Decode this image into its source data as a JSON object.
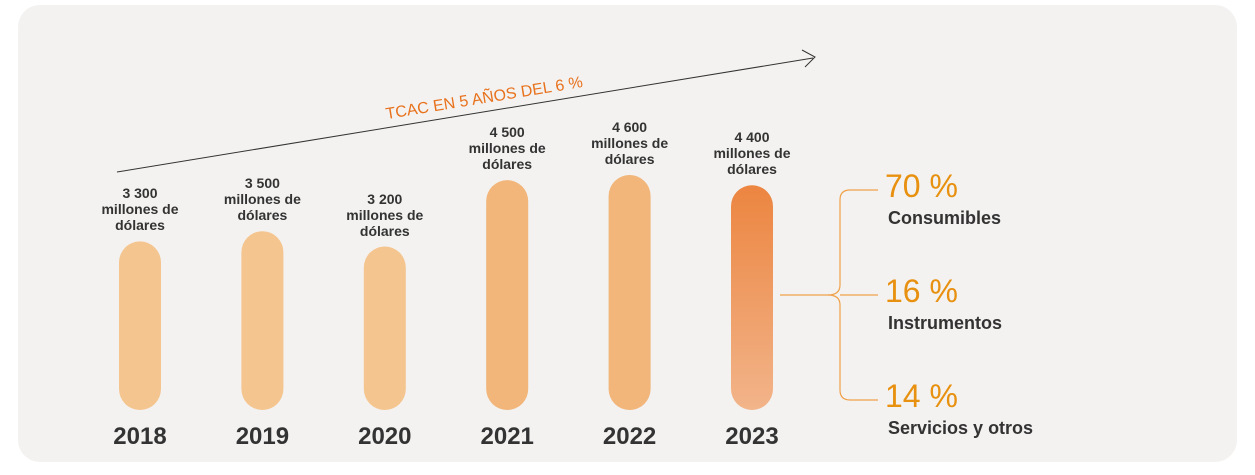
{
  "chart_data": {
    "type": "bar",
    "annotation": "TCAC EN 5 AÑOS DEL 6 %",
    "categories": [
      "2018",
      "2019",
      "2020",
      "2021",
      "2022",
      "2023"
    ],
    "values": [
      3300,
      3500,
      3200,
      4500,
      4600,
      4400
    ],
    "value_labels": [
      "3 300 millones de dólares",
      "3 500 millones de dólares",
      "3 200 millones de dólares",
      "4 500 millones de dólares",
      "4 600 millones de dólares",
      "4 400 millones de dólares"
    ],
    "colors": [
      "#f4c58f",
      "#f4c58f",
      "#f4c58f",
      "#f2b57a",
      "#f2b57a",
      "#ec8540"
    ],
    "breakdown": {
      "categories": [
        "Consumibles",
        "Instrumentos",
        "Servicios y otros"
      ],
      "values": [
        70,
        16,
        14
      ],
      "value_labels": [
        "70 %",
        "16 %",
        "14 %"
      ],
      "color": "#e8900f"
    }
  }
}
